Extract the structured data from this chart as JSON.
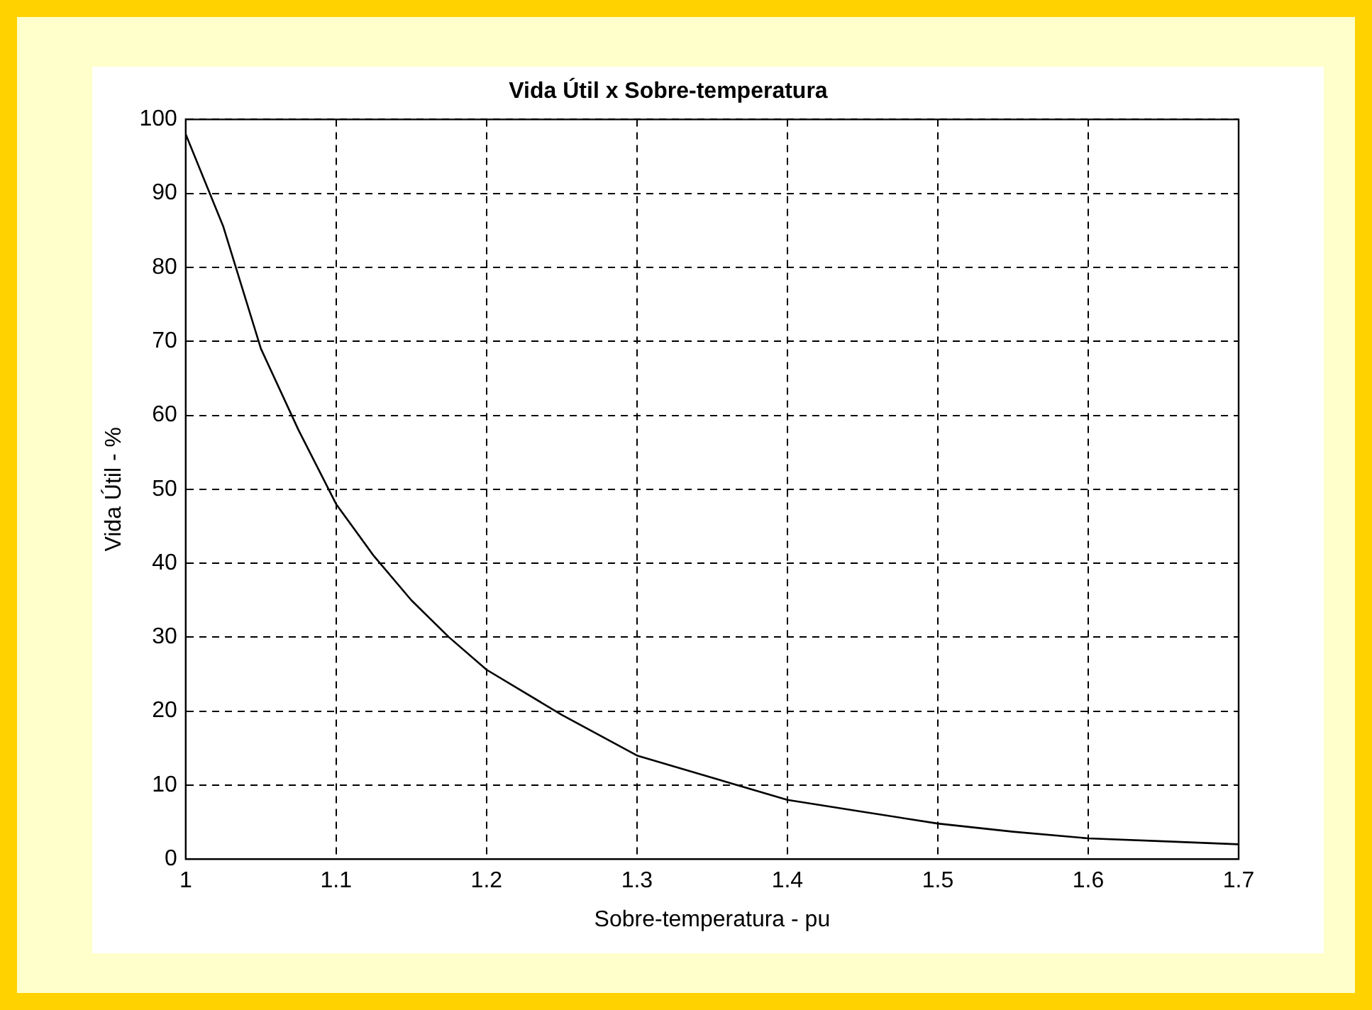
{
  "chart_data": {
    "type": "line",
    "title": "Vida Útil x Sobre-temperatura",
    "xlabel": "Sobre-temperatura - pu",
    "ylabel": "Vida Útil - %",
    "x": [
      1,
      1.025,
      1.05,
      1.075,
      1.1,
      1.125,
      1.15,
      1.175,
      1.2,
      1.25,
      1.3,
      1.35,
      1.4,
      1.45,
      1.5,
      1.55,
      1.6,
      1.65,
      1.7
    ],
    "series": [
      {
        "color": "#000000",
        "values": [
          98,
          85.5,
          69,
          58,
          48,
          41,
          35,
          30,
          25.6,
          19.5,
          14,
          11,
          8,
          6.4,
          4.8,
          3.7,
          2.8,
          2.4,
          2
        ]
      }
    ],
    "xlim": [
      1,
      1.7
    ],
    "xticks": [
      1,
      1.1,
      1.2,
      1.3,
      1.4,
      1.5,
      1.6,
      1.7
    ],
    "ylim": [
      0,
      100
    ],
    "yticks": [
      0,
      10,
      20,
      30,
      40,
      50,
      60,
      70,
      80,
      90,
      100
    ],
    "grid": true,
    "line_style": "solid"
  }
}
